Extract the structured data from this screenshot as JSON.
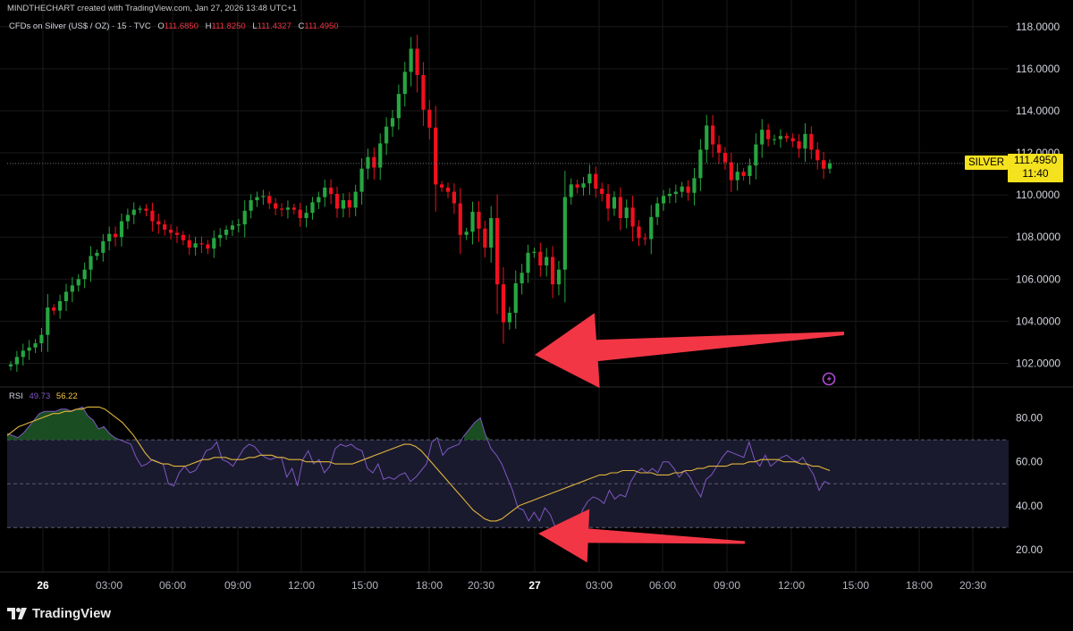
{
  "header": {
    "credit": "MINDTHECHART created with TradingView.com, Jan 27, 2026 13:48 UTC+1",
    "symbol": "CFDs on Silver (US$ / OZ) · 15 · TVC",
    "o_label": "O",
    "o_value": "111.6850",
    "h_label": "H",
    "h_value": "111.8250",
    "l_label": "L",
    "l_value": "111.4327",
    "c_label": "C",
    "c_value": "111.4950"
  },
  "rsi_legend": {
    "label": "RSI",
    "value": "49.73",
    "ma_value": "56.22"
  },
  "price_tag": {
    "symbol": "SILVER",
    "price": "111.4950",
    "countdown": "11:40"
  },
  "brand": {
    "name": "TradingView"
  },
  "colors": {
    "up": "#26a641",
    "down": "#f0101e",
    "rsi": "#7e57c2",
    "rsi_ma": "#e0b53c",
    "arrow": "#f23645",
    "overbought_fill": "#1f5a27",
    "band": "#1a1a2e",
    "grid": "#1a1a1a"
  },
  "chart_data": [
    {
      "type": "candlestick",
      "title": "CFDs on Silver (US$ / OZ)",
      "interval": "15",
      "ylim": [
        101,
        118.5
      ],
      "y_ticks": [
        "118.0000",
        "116.0000",
        "114.0000",
        "112.0000",
        "110.0000",
        "108.0000",
        "106.0000",
        "104.0000",
        "102.0000"
      ],
      "y_tick_values": [
        118,
        116,
        114,
        112,
        110,
        108,
        106,
        104,
        102
      ],
      "x_ticks": [
        "26",
        "03:00",
        "06:00",
        "09:00",
        "12:00",
        "15:00",
        "18:00",
        "20:30",
        "27",
        "03:00",
        "06:00",
        "09:00",
        "12:00",
        "15:00",
        "18:00",
        "20:30"
      ],
      "close": [
        101.95,
        102.3,
        102.6,
        102.75,
        102.95,
        103.35,
        104.65,
        104.5,
        104.95,
        105.4,
        105.7,
        106.0,
        106.45,
        107.1,
        107.25,
        107.8,
        108.15,
        108.0,
        108.75,
        109.05,
        109.3,
        109.35,
        109.25,
        108.75,
        108.6,
        108.35,
        108.2,
        108.1,
        107.85,
        107.5,
        107.7,
        107.65,
        107.45,
        107.95,
        108.1,
        108.35,
        108.55,
        108.6,
        109.25,
        109.75,
        109.9,
        109.95,
        109.6,
        109.35,
        109.3,
        109.4,
        109.3,
        108.9,
        109.15,
        109.65,
        109.9,
        110.35,
        110.05,
        109.35,
        109.75,
        109.4,
        110.15,
        111.25,
        111.8,
        111.3,
        112.45,
        113.25,
        113.65,
        114.8,
        115.85,
        116.95,
        115.7,
        114.05,
        113.2,
        110.5,
        110.35,
        110.15,
        109.6,
        108.1,
        108.25,
        109.2,
        108.4,
        107.5,
        108.9,
        105.75,
        103.95,
        104.4,
        105.8,
        106.3,
        107.25,
        107.3,
        106.65,
        107.05,
        105.75,
        106.45,
        109.9,
        110.5,
        110.35,
        110.55,
        111.0,
        110.3,
        110.05,
        109.35,
        109.9,
        108.9,
        109.4,
        108.5,
        107.95,
        107.9,
        108.95,
        109.6,
        109.95,
        110.05,
        110.15,
        110.4,
        110.1,
        110.8,
        112.15,
        113.3,
        112.4,
        112.0,
        111.55,
        110.7,
        111.1,
        110.9,
        111.4,
        112.4,
        113.1,
        112.65,
        112.65,
        112.8,
        112.7,
        112.55,
        112.2,
        112.9,
        112.15,
        111.65,
        111.25,
        111.5
      ],
      "series": [
        {
          "name": "SILVER",
          "last": 111.495
        }
      ]
    },
    {
      "type": "line",
      "title": "RSI",
      "ylim": [
        13,
        88
      ],
      "y_ticks": [
        "80.00",
        "60.00",
        "40.00",
        "20.00"
      ],
      "y_tick_values": [
        80,
        60,
        40,
        20
      ],
      "upper_band": 70,
      "middle_band": 50,
      "lower_band": 30,
      "rsi": [
        73,
        72,
        71,
        73,
        76,
        79,
        82,
        83,
        83,
        83,
        84,
        84,
        83,
        84,
        85,
        81,
        79,
        75,
        76,
        73,
        71,
        70,
        69,
        68,
        62,
        58,
        59,
        61,
        60,
        59,
        50,
        49,
        55,
        58,
        55,
        56,
        60,
        65,
        66,
        69,
        61,
        60,
        58,
        62,
        66,
        68,
        67,
        64,
        62,
        61,
        62,
        62,
        53,
        57,
        49,
        61,
        65,
        59,
        61,
        55,
        58,
        66,
        68,
        67,
        68,
        66,
        65,
        57,
        55,
        59,
        52,
        53,
        52,
        54,
        55,
        51,
        53,
        56,
        59,
        69,
        71,
        63,
        66,
        67,
        68,
        72,
        75,
        78,
        80,
        72,
        66,
        63,
        59,
        53,
        47,
        39,
        38,
        33,
        37,
        33,
        39,
        36,
        30,
        27,
        29,
        29,
        30,
        38,
        42,
        44,
        43,
        41,
        47,
        43,
        45,
        44,
        51,
        55,
        57,
        55,
        57,
        55,
        60,
        60,
        57,
        53,
        56,
        53,
        48,
        44,
        52,
        54,
        58,
        62,
        65,
        64,
        63,
        62,
        69,
        61,
        58,
        63,
        58,
        60,
        62,
        63,
        61,
        60,
        62,
        58,
        54,
        47,
        51,
        50
      ],
      "rsi_ma": [
        72,
        74,
        76,
        77,
        78,
        79,
        80,
        81,
        82,
        82,
        83,
        83,
        84,
        84,
        85,
        85,
        85,
        84,
        82,
        80,
        78,
        75,
        72,
        68,
        64,
        61,
        60,
        59,
        59,
        58,
        58,
        58,
        59,
        60,
        61,
        61,
        62,
        62,
        62,
        61,
        61,
        61,
        62,
        62,
        63,
        63,
        63,
        62,
        62,
        61,
        61,
        61,
        60,
        60,
        60,
        60,
        60,
        59,
        59,
        59,
        59,
        60,
        61,
        62,
        63,
        64,
        65,
        66,
        67,
        68,
        68,
        67,
        65,
        62,
        59,
        56,
        53,
        50,
        47,
        44,
        41,
        38,
        36,
        34,
        33,
        33,
        34,
        36,
        38,
        40,
        41,
        42,
        43,
        44,
        45,
        46,
        47,
        48,
        49,
        50,
        51,
        52,
        53,
        54,
        54,
        55,
        55,
        56,
        56,
        56,
        55,
        55,
        55,
        54,
        54,
        54,
        55,
        55,
        56,
        56,
        57,
        57,
        58,
        58,
        58,
        58,
        59,
        59,
        59,
        60,
        60,
        61,
        61,
        61,
        61,
        60,
        60,
        60,
        59,
        59,
        58,
        58,
        57,
        56
      ]
    }
  ],
  "annotations": [
    {
      "type": "arrow",
      "pane": "price",
      "points_to": "low near 102.0000"
    },
    {
      "type": "arrow",
      "pane": "rsi",
      "points_to": "RSI low near 27"
    }
  ]
}
